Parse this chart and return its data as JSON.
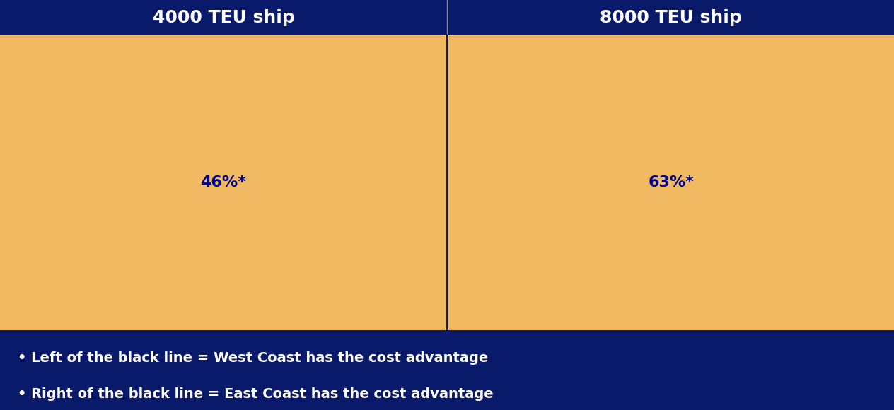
{
  "title_left": "4000 TEU ship",
  "title_right": "8000 TEU ship",
  "label1": "• Left of the black line = West Coast has the cost advantage",
  "label2": "• Right of the black line = East Coast has the cost advantage",
  "pct_left": "46%*",
  "pct_right": "63%*",
  "bg_color": "#0a1a6b",
  "header_color": "#1a3a9a",
  "map_bg": "#8888cc",
  "ocean_color": "#00ccaa",
  "title_text_color": "white",
  "label_text_color": "white",
  "pct_text_color": "#00008B",
  "figsize": [
    12.64,
    5.8
  ],
  "dpi": 100
}
